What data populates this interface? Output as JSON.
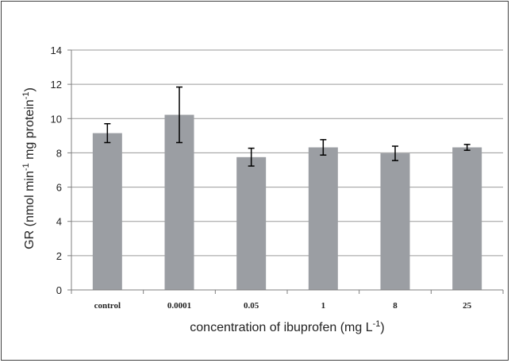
{
  "chart_data": {
    "type": "bar",
    "title": "",
    "categories": [
      "control",
      "0.0001",
      "0.05",
      "1",
      "8",
      "25"
    ],
    "series": [
      {
        "values": [
          9.15,
          10.22,
          7.75,
          8.32,
          7.97,
          8.32
        ],
        "error": [
          0.55,
          1.62,
          0.52,
          0.45,
          0.42,
          0.17
        ],
        "color": "#9b9ea3"
      }
    ],
    "ylim": [
      0,
      14
    ],
    "yticks": [
      0,
      2,
      4,
      6,
      8,
      10,
      12,
      14
    ],
    "ylabel": {
      "base": "GR (nmol min",
      "sup1": "-1",
      "mid": " mg protein",
      "sup2": "-1",
      "end": ")"
    },
    "xlabel": {
      "base": "concentration of ibuprofen (mg L",
      "sup": "-1",
      "end": ")"
    },
    "grid": true,
    "legend": "none"
  }
}
